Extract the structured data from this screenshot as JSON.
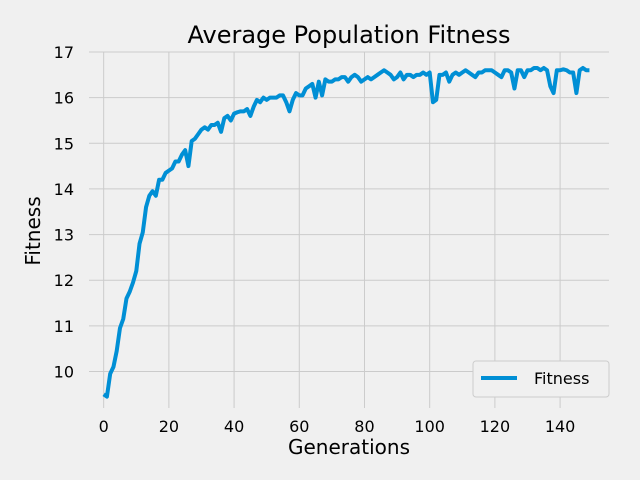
{
  "chart_data": {
    "type": "line",
    "title": "Average Population Fitness",
    "xlabel": "Generations",
    "ylabel": "Fitness",
    "xlim": [
      -4.5,
      155
    ],
    "ylim": [
      9.2,
      17
    ],
    "xticks": [
      0,
      20,
      40,
      60,
      80,
      100,
      120,
      140
    ],
    "yticks": [
      10,
      11,
      12,
      13,
      14,
      15,
      16,
      17
    ],
    "grid": true,
    "legend_position": "bottom-right",
    "series": [
      {
        "name": "Fitness",
        "color": "#008fd5",
        "x": [
          0,
          1,
          2,
          3,
          4,
          5,
          6,
          7,
          8,
          9,
          10,
          11,
          12,
          13,
          14,
          15,
          16,
          17,
          18,
          19,
          20,
          21,
          22,
          23,
          24,
          25,
          26,
          27,
          28,
          29,
          30,
          31,
          32,
          33,
          34,
          35,
          36,
          37,
          38,
          39,
          40,
          41,
          42,
          43,
          44,
          45,
          46,
          47,
          48,
          49,
          50,
          51,
          52,
          53,
          54,
          55,
          56,
          57,
          58,
          59,
          60,
          61,
          62,
          63,
          64,
          65,
          66,
          67,
          68,
          69,
          70,
          71,
          72,
          73,
          74,
          75,
          76,
          77,
          78,
          79,
          80,
          81,
          82,
          83,
          84,
          85,
          86,
          87,
          88,
          89,
          90,
          91,
          92,
          93,
          94,
          95,
          96,
          97,
          98,
          99,
          100,
          101,
          102,
          103,
          104,
          105,
          106,
          107,
          108,
          109,
          110,
          111,
          112,
          113,
          114,
          115,
          116,
          117,
          118,
          119,
          120,
          121,
          122,
          123,
          124,
          125,
          126,
          127,
          128,
          129,
          130,
          131,
          132,
          133,
          134,
          135,
          136,
          137,
          138,
          139,
          140,
          141,
          142,
          143,
          144,
          145,
          146,
          147,
          148,
          149
        ],
        "y": [
          9.5,
          9.45,
          9.95,
          10.1,
          10.45,
          10.95,
          11.15,
          11.6,
          11.75,
          11.95,
          12.2,
          12.8,
          13.05,
          13.6,
          13.85,
          13.95,
          13.85,
          14.2,
          14.2,
          14.35,
          14.4,
          14.45,
          14.6,
          14.6,
          14.75,
          14.85,
          14.5,
          15.05,
          15.1,
          15.2,
          15.3,
          15.35,
          15.3,
          15.4,
          15.4,
          15.45,
          15.25,
          15.55,
          15.6,
          15.5,
          15.65,
          15.68,
          15.7,
          15.7,
          15.75,
          15.6,
          15.8,
          15.95,
          15.9,
          16.0,
          15.95,
          16.0,
          16.0,
          16.0,
          16.05,
          16.05,
          15.9,
          15.7,
          15.95,
          16.1,
          16.05,
          16.05,
          16.2,
          16.25,
          16.3,
          16.0,
          16.35,
          16.05,
          16.4,
          16.35,
          16.35,
          16.4,
          16.4,
          16.45,
          16.45,
          16.35,
          16.45,
          16.5,
          16.45,
          16.35,
          16.4,
          16.45,
          16.4,
          16.45,
          16.5,
          16.55,
          16.6,
          16.55,
          16.5,
          16.4,
          16.45,
          16.55,
          16.4,
          16.5,
          16.5,
          16.45,
          16.5,
          16.5,
          16.55,
          16.5,
          16.55,
          15.9,
          15.95,
          16.5,
          16.5,
          16.55,
          16.35,
          16.5,
          16.55,
          16.5,
          16.55,
          16.6,
          16.55,
          16.5,
          16.45,
          16.55,
          16.55,
          16.6,
          16.6,
          16.6,
          16.55,
          16.5,
          16.45,
          16.6,
          16.6,
          16.55,
          16.2,
          16.6,
          16.6,
          16.45,
          16.6,
          16.6,
          16.65,
          16.65,
          16.6,
          16.65,
          16.6,
          16.25,
          16.1,
          16.6,
          16.6,
          16.62,
          16.6,
          16.55,
          16.55,
          16.1,
          16.6,
          16.65,
          16.6,
          16.6
        ]
      }
    ]
  }
}
